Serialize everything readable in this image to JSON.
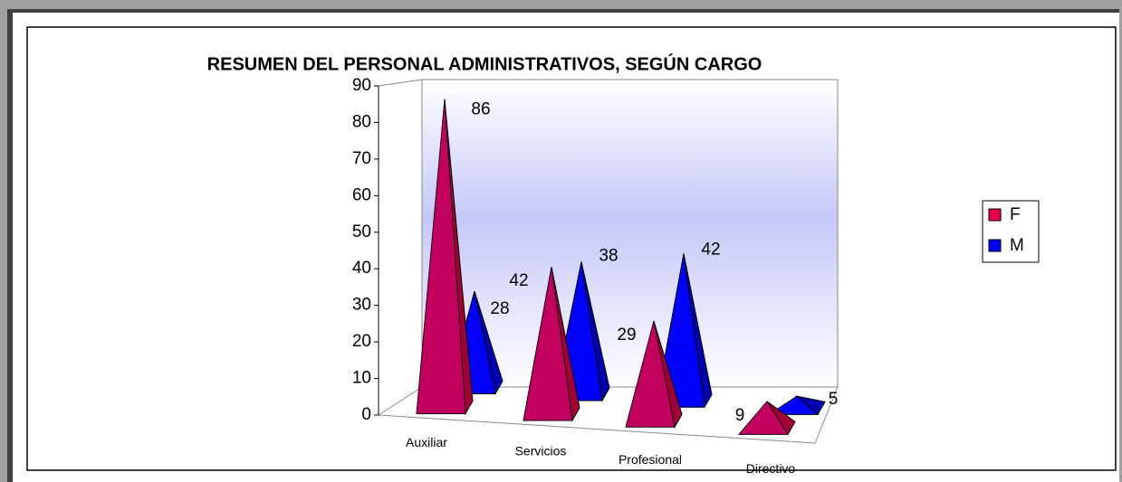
{
  "chart_data": {
    "type": "bar3d-pyramid",
    "title": "RESUMEN DEL PERSONAL ADMINISTRATIVOS, SEGÚN CARGO",
    "categories": [
      "Auxiliar",
      "Servicios",
      "Profesional",
      "Directivo"
    ],
    "series": [
      {
        "name": "F",
        "color": "#e8004c",
        "values": [
          86,
          42,
          29,
          9
        ]
      },
      {
        "name": "M",
        "color": "#0000ff",
        "values": [
          28,
          38,
          42,
          5
        ]
      }
    ],
    "ylim": [
      0,
      90
    ],
    "yticks": [
      0,
      10,
      20,
      30,
      40,
      50,
      60,
      70,
      80,
      90
    ],
    "legend": "right"
  }
}
